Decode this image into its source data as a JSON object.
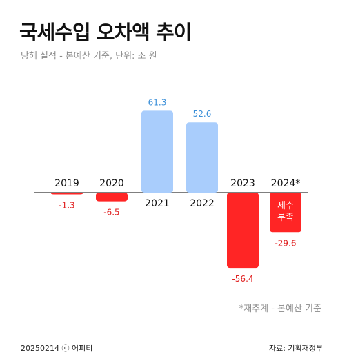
{
  "header": {
    "title": "국세수입 오차액 추이",
    "subtitle": "당해 실적 - 본예산 기준, 단위: 조 원"
  },
  "note": "*재추계 - 본예산 기준",
  "footer": {
    "date_brand": "20250214 ⓒ 어피티",
    "source": "자료: 기획재정부"
  },
  "colors": {
    "positive": "#a9cdfc",
    "negative": "#ff2525",
    "positive_label": "#3a8fd8",
    "negative_label": "#e01e1e",
    "axis": "#555555"
  },
  "chart_data": {
    "type": "bar",
    "categories": [
      "2019",
      "2020",
      "2021",
      "2022",
      "2023",
      "2024*"
    ],
    "values": [
      -1.3,
      -6.5,
      61.3,
      52.6,
      -56.4,
      -29.6
    ],
    "value_labels": [
      "-1.3",
      "-6.5",
      "61.3",
      "52.6",
      "-56.4",
      "-29.6"
    ],
    "annotations": [
      {
        "category": "2024*",
        "text_lines": [
          "세수",
          "부족"
        ]
      }
    ],
    "title": "국세수입 오차액 추이",
    "subtitle": "당해 실적 - 본예산 기준, 단위: 조 원",
    "ylim": [
      -60,
      65
    ],
    "grid": false,
    "legend": "none"
  }
}
